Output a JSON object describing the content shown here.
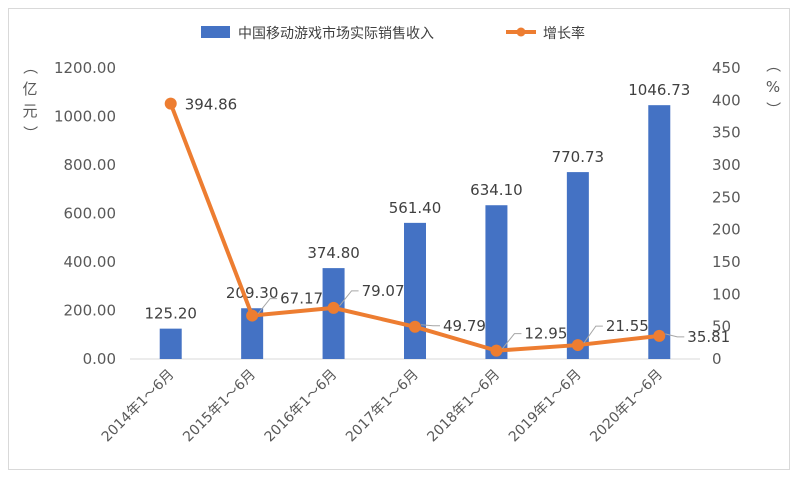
{
  "chart_data": {
    "type": "bar+line",
    "categories": [
      "2014年1～6月",
      "2015年1～6月",
      "2016年1～6月",
      "2017年1～6月",
      "2018年1～6月",
      "2019年1～6月",
      "2020年1～6月"
    ],
    "series": [
      {
        "name": "中国移动游戏市场实际销售收入",
        "type": "bar",
        "axis": "left",
        "color": "#4472C4",
        "values": [
          125.2,
          209.3,
          374.8,
          561.4,
          634.1,
          770.73,
          1046.73
        ],
        "labels": [
          "125.20",
          "209.30",
          "374.80",
          "561.40",
          "634.10",
          "770.73",
          "1046.73"
        ]
      },
      {
        "name": "增长率",
        "type": "line",
        "axis": "right",
        "color": "#ED7D31",
        "values": [
          394.86,
          67.17,
          79.07,
          49.79,
          12.95,
          21.55,
          35.81
        ],
        "labels": [
          "394.86",
          "67.17",
          "79.07",
          "49.79",
          "12.95",
          "21.55",
          "35.81"
        ]
      }
    ],
    "y_left": {
      "label": "（亿元）",
      "ylim": [
        0,
        1200
      ],
      "ticks": [
        "0.00",
        "200.00",
        "400.00",
        "600.00",
        "800.00",
        "1000.00",
        "1200.00"
      ]
    },
    "y_right": {
      "label": "（%）",
      "ylim": [
        0,
        450
      ],
      "ticks": [
        "0",
        "50",
        "100",
        "150",
        "200",
        "250",
        "300",
        "350",
        "400",
        "450"
      ]
    },
    "legend_position": "top",
    "grid": false
  }
}
